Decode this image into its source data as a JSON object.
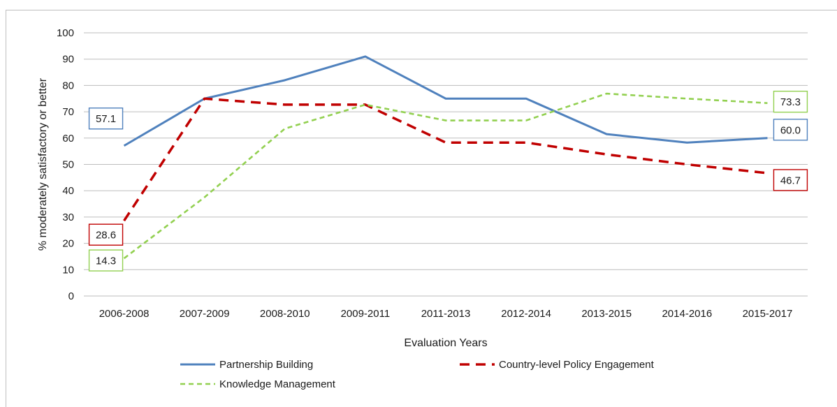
{
  "chart_data": {
    "type": "line",
    "title": "",
    "xlabel": "Evaluation Years",
    "ylabel": "% moderately satisfactory or better",
    "ylim": [
      0,
      100
    ],
    "yticks": [
      0,
      10,
      20,
      30,
      40,
      50,
      60,
      70,
      80,
      90,
      100
    ],
    "categories": [
      "2006-2008",
      "2007-2009",
      "2008-2010",
      "2009-2011",
      "2011-2013",
      "2012-2014",
      "2013-2015",
      "2014-2016",
      "2015-2017"
    ],
    "grid": true,
    "legend_position": "bottom",
    "series": [
      {
        "name": "Partnership Building",
        "color": "#4f81bd",
        "dash": "solid",
        "values": [
          57.1,
          75,
          82,
          91,
          75,
          75,
          61.5,
          58.3,
          60.0
        ]
      },
      {
        "name": "Country-level Policy Engagement",
        "color": "#c00000",
        "dash": "dashed",
        "values": [
          28.6,
          75,
          72.7,
          72.7,
          58.3,
          58.3,
          53.8,
          50.0,
          46.7
        ]
      },
      {
        "name": "Knowledge Management",
        "color": "#92d050",
        "dash": "dashed",
        "values": [
          14.3,
          37.5,
          63.6,
          72.7,
          66.7,
          66.7,
          76.9,
          75.0,
          73.3
        ]
      }
    ],
    "annotations": [
      {
        "text": "57.1",
        "series": 0,
        "point": "start",
        "color": "#4f81bd"
      },
      {
        "text": "28.6",
        "series": 1,
        "point": "start",
        "color": "#c00000"
      },
      {
        "text": "14.3",
        "series": 2,
        "point": "start",
        "color": "#92d050"
      },
      {
        "text": "73.3",
        "series": 2,
        "point": "end",
        "color": "#92d050"
      },
      {
        "text": "60.0",
        "series": 0,
        "point": "end",
        "color": "#4f81bd"
      },
      {
        "text": "46.7",
        "series": 1,
        "point": "end",
        "color": "#c00000"
      }
    ]
  }
}
